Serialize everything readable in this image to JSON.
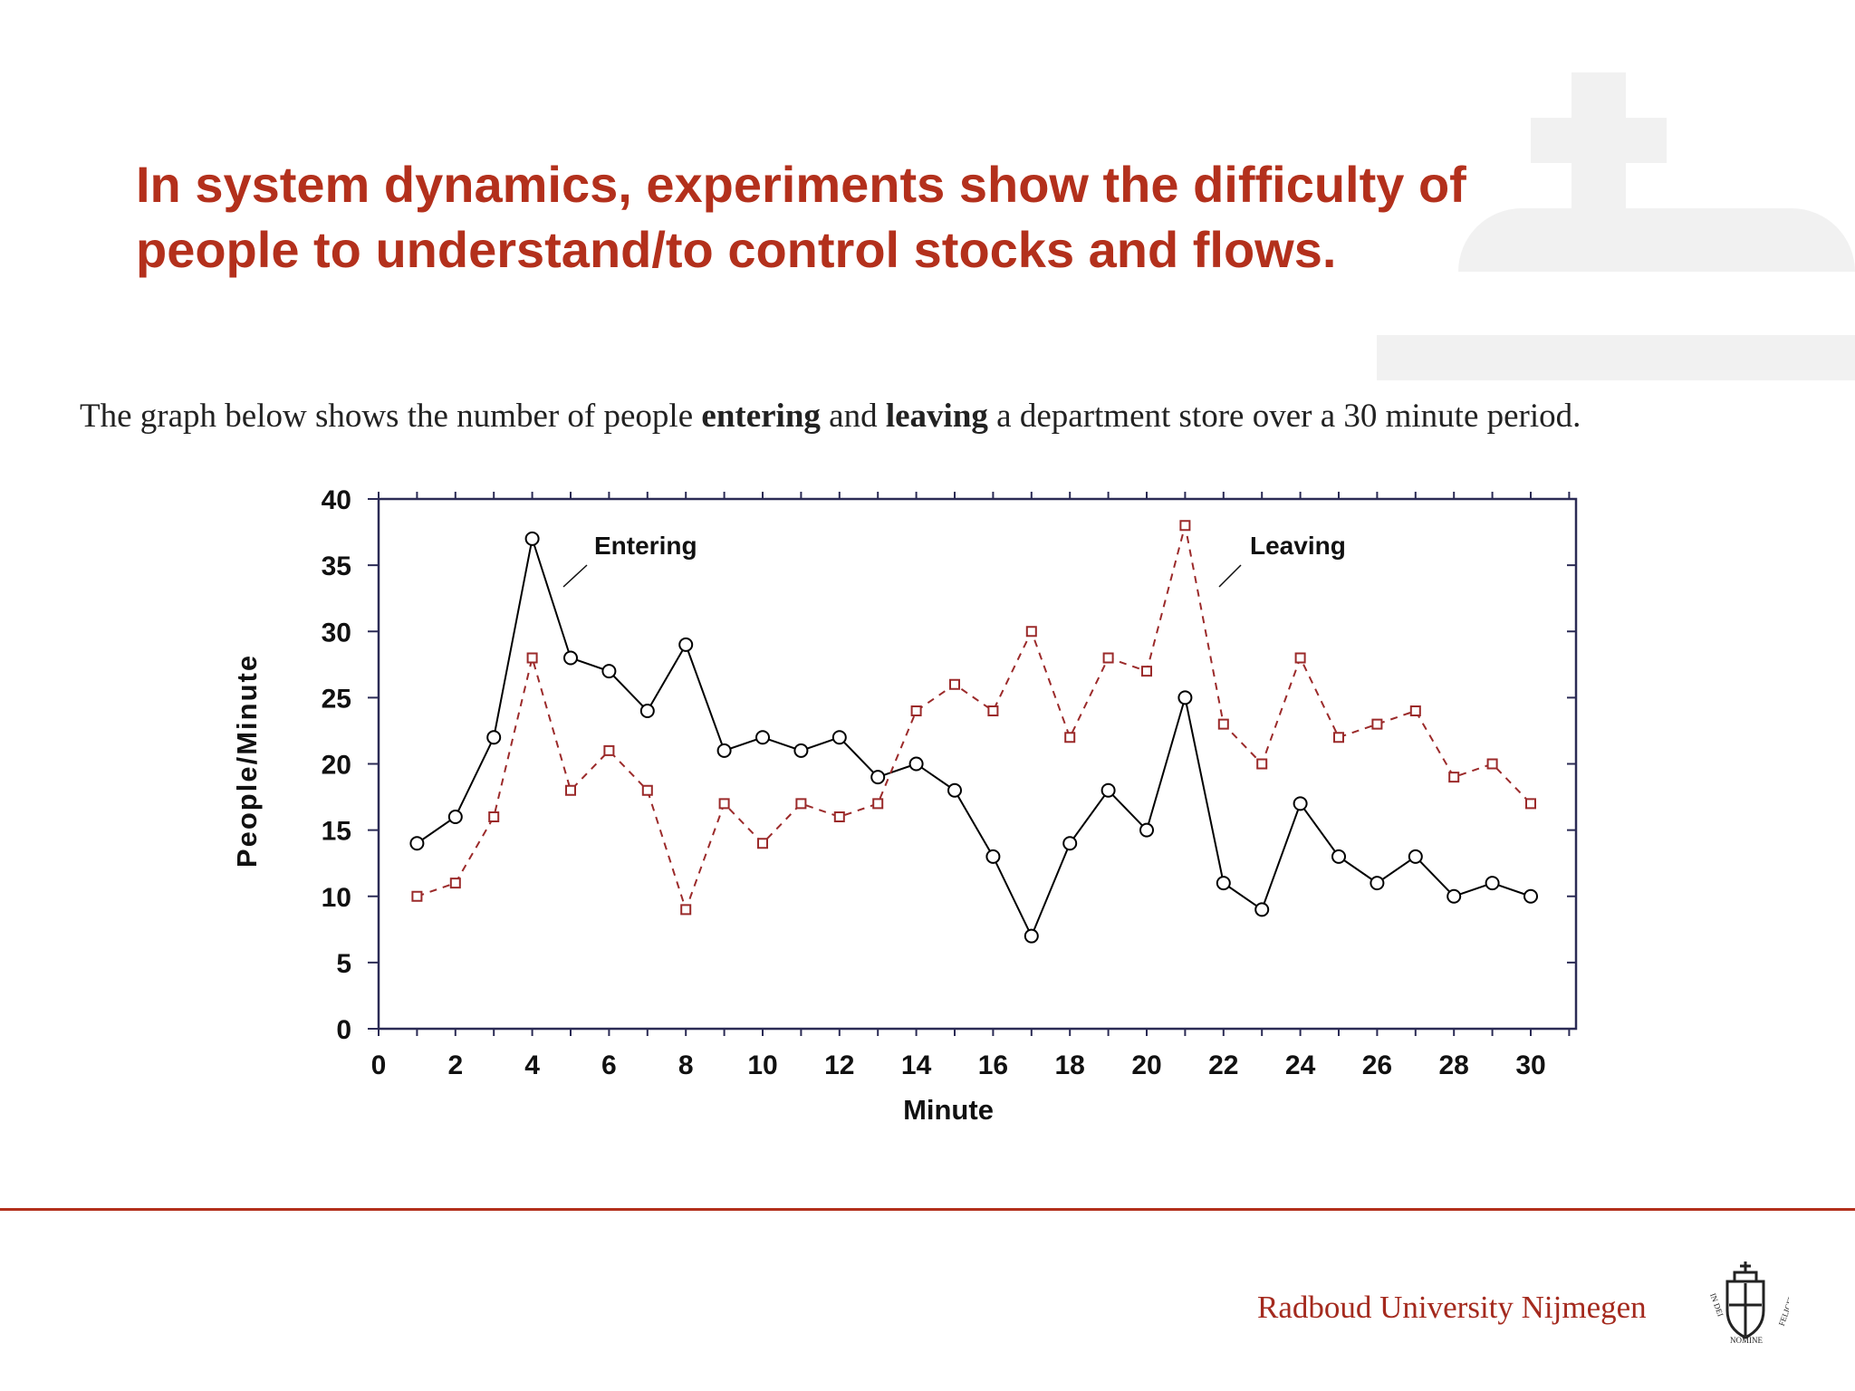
{
  "slide": {
    "title": "In system dynamics, experiments show the difficulty of people to understand/to control stocks and flows.",
    "intro_parts": [
      "The graph below shows the number of people ",
      "entering",
      " and ",
      "leaving",
      " a department store over a 30 minute period."
    ],
    "brand": "Radboud University Nijmegen",
    "crest_motto": "IN DEI NOMINE FELICITER",
    "accent_color": "#b3301c"
  },
  "chart_data": {
    "type": "line",
    "xlabel": "Minute",
    "ylabel": "People/Minute",
    "xlim": [
      0,
      31
    ],
    "ylim": [
      0,
      40
    ],
    "xticks": [
      0,
      2,
      4,
      6,
      8,
      10,
      12,
      14,
      16,
      18,
      20,
      22,
      24,
      26,
      28,
      30
    ],
    "yticks": [
      0,
      5,
      10,
      15,
      20,
      25,
      30,
      35,
      40
    ],
    "grid": false,
    "x": [
      1,
      2,
      3,
      4,
      5,
      6,
      7,
      8,
      9,
      10,
      11,
      12,
      13,
      14,
      15,
      16,
      17,
      18,
      19,
      20,
      21,
      22,
      23,
      24,
      25,
      26,
      27,
      28,
      29,
      30
    ],
    "series": [
      {
        "name": "Entering",
        "color": "#000000",
        "style": "solid",
        "marker": "diamond",
        "values": [
          14,
          16,
          22,
          37,
          28,
          27,
          24,
          29,
          21,
          22,
          21,
          22,
          19,
          20,
          18,
          13,
          7,
          14,
          18,
          15,
          25,
          11,
          9,
          17,
          13,
          11,
          13,
          10,
          11,
          10
        ]
      },
      {
        "name": "Leaving",
        "color": "#9b2a2a",
        "style": "dashed",
        "marker": "square",
        "values": [
          10,
          11,
          16,
          28,
          18,
          21,
          18,
          9,
          17,
          14,
          17,
          16,
          17,
          24,
          26,
          24,
          30,
          22,
          28,
          27,
          38,
          23,
          20,
          28,
          22,
          23,
          24,
          19,
          20,
          17
        ]
      }
    ],
    "annotations": [
      {
        "text": "Entering",
        "series": "Entering"
      },
      {
        "text": "Leaving",
        "series": "Leaving"
      }
    ]
  }
}
